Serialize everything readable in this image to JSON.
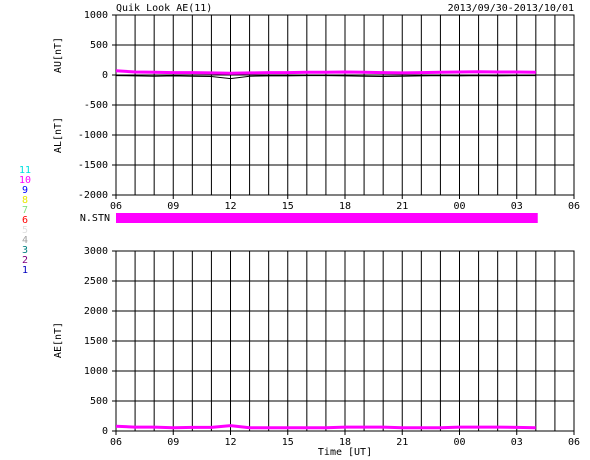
{
  "header": {
    "title": "Quik Look AE(11)",
    "date_range": "2013/09/30-2013/10/01",
    "x_label": "Time [UT]"
  },
  "station_legend": [
    {
      "label": "11",
      "color": "#00e0e0"
    },
    {
      "label": "10",
      "color": "#ff00ff"
    },
    {
      "label": "9",
      "color": "#0000ff"
    },
    {
      "label": "8",
      "color": "#e8e800"
    },
    {
      "label": "7",
      "color": "#80e080"
    },
    {
      "label": "6",
      "color": "#ff0000"
    },
    {
      "label": "5",
      "color": "#e0e0e0"
    },
    {
      "label": "4",
      "color": "#a0a0a0"
    },
    {
      "label": "3",
      "color": "#008080"
    },
    {
      "label": "2",
      "color": "#800080"
    },
    {
      "label": "1",
      "color": "#0000c0"
    }
  ],
  "nstn": {
    "label": "N.STN",
    "color": "#ff00ff",
    "x_start": 6,
    "x_end": 28.1
  },
  "chart_data": [
    {
      "type": "line",
      "y_labels": [
        "AU[nT]",
        "AL[nT]"
      ],
      "x": [
        6,
        7,
        8,
        9,
        10,
        11,
        12,
        13,
        14,
        15,
        16,
        17,
        18,
        19,
        20,
        21,
        22,
        23,
        24,
        25,
        26,
        27,
        28
      ],
      "series": [
        {
          "color": "#ff00ff",
          "values": [
            70,
            50,
            45,
            40,
            40,
            35,
            30,
            35,
            40,
            40,
            45,
            45,
            50,
            45,
            40,
            35,
            40,
            45,
            50,
            55,
            50,
            50,
            45
          ]
        },
        {
          "color": "#000000",
          "values": [
            -10,
            -15,
            -20,
            -15,
            -20,
            -25,
            -60,
            -20,
            -15,
            -15,
            -10,
            -10,
            -15,
            -20,
            -25,
            -20,
            -15,
            -10,
            -15,
            -10,
            -15,
            -10,
            -10
          ]
        }
      ],
      "xlim": [
        6,
        30
      ],
      "xticks": [
        {
          "value": 6,
          "label": "06"
        },
        {
          "value": 9,
          "label": "09"
        },
        12,
        15,
        18,
        21,
        {
          "value": 24,
          "label": "00"
        },
        {
          "value": 27,
          "label": "03"
        },
        {
          "value": 30,
          "label": "06"
        }
      ],
      "xgrid": [
        6,
        7,
        8,
        9,
        10,
        11,
        12,
        13,
        14,
        15,
        16,
        17,
        18,
        19,
        20,
        21,
        22,
        23,
        24,
        25,
        26,
        27,
        28,
        29,
        30
      ],
      "ylim": [
        -2000,
        1000
      ],
      "yticks": [
        -2000,
        -1500,
        -1000,
        -500,
        0,
        500,
        1000
      ],
      "grid": true
    },
    {
      "type": "line",
      "y_labels": [
        "AE[nT]"
      ],
      "x": [
        6,
        7,
        8,
        9,
        10,
        11,
        12,
        13,
        14,
        15,
        16,
        17,
        18,
        19,
        20,
        21,
        22,
        23,
        24,
        25,
        26,
        27,
        28
      ],
      "series": [
        {
          "color": "#ff00ff",
          "values": [
            80,
            65,
            65,
            55,
            60,
            60,
            90,
            55,
            55,
            55,
            55,
            55,
            65,
            65,
            65,
            55,
            55,
            55,
            65,
            65,
            65,
            60,
            55
          ]
        }
      ],
      "xlim": [
        6,
        30
      ],
      "xticks": [
        {
          "value": 6,
          "label": "06"
        },
        {
          "value": 9,
          "label": "09"
        },
        12,
        15,
        18,
        21,
        {
          "value": 24,
          "label": "00"
        },
        {
          "value": 27,
          "label": "03"
        },
        {
          "value": 30,
          "label": "06"
        }
      ],
      "xgrid": [
        6,
        7,
        8,
        9,
        10,
        11,
        12,
        13,
        14,
        15,
        16,
        17,
        18,
        19,
        20,
        21,
        22,
        23,
        24,
        25,
        26,
        27,
        28,
        29,
        30
      ],
      "ylim": [
        0,
        3000
      ],
      "yticks": [
        0,
        500,
        1000,
        1500,
        2000,
        2500,
        3000
      ],
      "grid": true
    }
  ]
}
